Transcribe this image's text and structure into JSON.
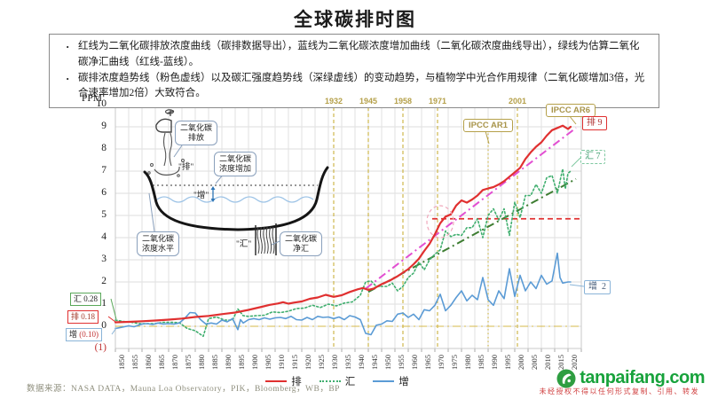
{
  "title": "全球碳排时图",
  "description_box": {
    "bullets": [
      "红线为二氧化碳排放浓度曲线（碳排数据导出），蓝线为二氧化碳浓度增加曲线（二氧化碳浓度曲线导出），绿线为估算二氧化碳净汇曲线（红线-蓝线）。",
      "碳排浓度趋势线（粉色虚线）以及碳汇强度趋势线（深绿虚线）的变动趋势，与植物学中光合作用规律（二氧化碳增加3倍，光合速率增加2倍）大致符合。"
    ]
  },
  "chart_data": {
    "type": "line",
    "ylabel": "PPM",
    "ylim": [
      -1,
      10
    ],
    "xlim": [
      1850,
      2025
    ],
    "grid": true,
    "y_ticks": [
      {
        "v": 10,
        "label": "10",
        "color": "#1a1a1a"
      },
      {
        "v": 9,
        "label": "9",
        "color": "#1a1a1a"
      },
      {
        "v": 8,
        "label": "8",
        "color": "#1a1a1a"
      },
      {
        "v": 7,
        "label": "7",
        "color": "#1a1a1a"
      },
      {
        "v": 6,
        "label": "6",
        "color": "#1a1a1a"
      },
      {
        "v": 5,
        "label": "5",
        "color": "#1a1a1a"
      },
      {
        "v": 4,
        "label": "4",
        "color": "#1a1a1a"
      },
      {
        "v": 3,
        "label": "3",
        "color": "#1a1a1a"
      },
      {
        "v": 2,
        "label": "2",
        "color": "#1a1a1a"
      },
      {
        "v": 1,
        "label": "1",
        "color": "#1a1a1a"
      },
      {
        "v": 0,
        "label": "0",
        "color": "#1a1a1a"
      },
      {
        "v": -1,
        "label": "(1)",
        "color": "#c03030"
      }
    ],
    "x_ticks": [
      1850,
      1855,
      1860,
      1865,
      1870,
      1875,
      1880,
      1885,
      1890,
      1895,
      1900,
      1905,
      1910,
      1915,
      1920,
      1925,
      1930,
      1935,
      1940,
      1945,
      1950,
      1955,
      1960,
      1965,
      1970,
      1975,
      1980,
      1985,
      1990,
      1995,
      2000,
      2005,
      2010,
      2015,
      2020
    ],
    "event_lines": [
      {
        "year": 1932,
        "label": "1932",
        "style": "dashfine"
      },
      {
        "year": 1945,
        "label": "1945",
        "style": "dashfine"
      },
      {
        "year": 1958,
        "label": "1958",
        "style": "dashfine"
      },
      {
        "year": 1971,
        "label": "1971",
        "style": "dashfine"
      },
      {
        "year": 1990,
        "label": "",
        "style": "dotfine"
      },
      {
        "year": 2001,
        "label": "2001",
        "style": "dashfine"
      }
    ],
    "series": [
      {
        "name": "汇",
        "color": "#3fae6e",
        "style": "dotted",
        "width": 1.6,
        "points": [
          [
            1850,
            0.28
          ],
          [
            1853,
            0.22
          ],
          [
            1856,
            0.18
          ],
          [
            1859,
            0.12
          ],
          [
            1862,
            0.12
          ],
          [
            1865,
            0.12
          ],
          [
            1868,
            0.18
          ],
          [
            1871,
            0.18
          ],
          [
            1874,
            0.16
          ],
          [
            1877,
            -0.1
          ],
          [
            1880,
            -0.2
          ],
          [
            1883,
            -0.45
          ],
          [
            1885,
            0.35
          ],
          [
            1888,
            0.42
          ],
          [
            1891,
            0.28
          ],
          [
            1894,
            0.28
          ],
          [
            1896,
            0.78
          ],
          [
            1898,
            0.48
          ],
          [
            1900,
            0.45
          ],
          [
            1903,
            0.48
          ],
          [
            1906,
            0.5
          ],
          [
            1909,
            0.65
          ],
          [
            1912,
            0.62
          ],
          [
            1915,
            0.68
          ],
          [
            1918,
            0.8
          ],
          [
            1921,
            0.82
          ],
          [
            1924,
            0.95
          ],
          [
            1927,
            0.85
          ],
          [
            1930,
            1.0
          ],
          [
            1933,
            0.92
          ],
          [
            1936,
            1.05
          ],
          [
            1939,
            1.1
          ],
          [
            1942,
            1.4
          ],
          [
            1944,
            2.0
          ],
          [
            1946,
            2.05
          ],
          [
            1948,
            1.8
          ],
          [
            1950,
            1.8
          ],
          [
            1952,
            1.8
          ],
          [
            1954,
            1.95
          ],
          [
            1956,
            1.6
          ],
          [
            1958,
            1.8
          ],
          [
            1960,
            2.2
          ],
          [
            1962,
            2.4
          ],
          [
            1964,
            2.9
          ],
          [
            1966,
            2.55
          ],
          [
            1968,
            3.0
          ],
          [
            1970,
            3.25
          ],
          [
            1972,
            3.45
          ],
          [
            1974,
            4.3
          ],
          [
            1976,
            4.05
          ],
          [
            1978,
            4.15
          ],
          [
            1980,
            4.1
          ],
          [
            1982,
            4.45
          ],
          [
            1984,
            4.45
          ],
          [
            1986,
            4.85
          ],
          [
            1988,
            4.0
          ],
          [
            1990,
            5.0
          ],
          [
            1992,
            5.3
          ],
          [
            1994,
            4.8
          ],
          [
            1996,
            5.3
          ],
          [
            1998,
            4.1
          ],
          [
            2000,
            5.6
          ],
          [
            2002,
            4.9
          ],
          [
            2004,
            5.9
          ],
          [
            2006,
            5.9
          ],
          [
            2008,
            6.4
          ],
          [
            2010,
            6.0
          ],
          [
            2012,
            6.7
          ],
          [
            2014,
            6.8
          ],
          [
            2016,
            6.0
          ],
          [
            2018,
            7.1
          ],
          [
            2019,
            6.2
          ],
          [
            2020,
            6.9
          ],
          [
            2021,
            7.0
          ]
        ]
      },
      {
        "name": "增",
        "color": "#5b9bd5",
        "style": "solid",
        "width": 1.6,
        "points": [
          [
            1850,
            -0.1
          ],
          [
            1852,
            -0.05
          ],
          [
            1855,
            0.02
          ],
          [
            1857,
            -0.02
          ],
          [
            1860,
            0.1
          ],
          [
            1862,
            0.12
          ],
          [
            1864,
            0.08
          ],
          [
            1866,
            0.15
          ],
          [
            1868,
            0.1
          ],
          [
            1870,
            0.12
          ],
          [
            1872,
            0.1
          ],
          [
            1874,
            0.15
          ],
          [
            1876,
            0.35
          ],
          [
            1878,
            0.62
          ],
          [
            1880,
            0.6
          ],
          [
            1882,
            0.3
          ],
          [
            1884,
            0.1
          ],
          [
            1886,
            0.15
          ],
          [
            1888,
            0.1
          ],
          [
            1890,
            0.28
          ],
          [
            1892,
            0.2
          ],
          [
            1894,
            0.35
          ],
          [
            1896,
            -0.15
          ],
          [
            1897,
            0.3
          ],
          [
            1898,
            0.15
          ],
          [
            1900,
            0.3
          ],
          [
            1902,
            0.35
          ],
          [
            1904,
            0.3
          ],
          [
            1906,
            0.38
          ],
          [
            1908,
            0.32
          ],
          [
            1910,
            0.38
          ],
          [
            1912,
            0.4
          ],
          [
            1914,
            0.35
          ],
          [
            1916,
            0.45
          ],
          [
            1918,
            0.3
          ],
          [
            1920,
            0.28
          ],
          [
            1922,
            0.4
          ],
          [
            1924,
            0.3
          ],
          [
            1926,
            0.45
          ],
          [
            1928,
            0.4
          ],
          [
            1930,
            0.42
          ],
          [
            1932,
            0.35
          ],
          [
            1934,
            0.42
          ],
          [
            1936,
            0.3
          ],
          [
            1938,
            0.48
          ],
          [
            1940,
            0.42
          ],
          [
            1942,
            0.3
          ],
          [
            1944,
            -0.32
          ],
          [
            1946,
            -0.38
          ],
          [
            1948,
            0.05
          ],
          [
            1950,
            0.1
          ],
          [
            1952,
            0.25
          ],
          [
            1954,
            0.22
          ],
          [
            1956,
            0.55
          ],
          [
            1958,
            0.6
          ],
          [
            1960,
            0.4
          ],
          [
            1962,
            0.55
          ],
          [
            1964,
            0.3
          ],
          [
            1966,
            0.75
          ],
          [
            1968,
            0.7
          ],
          [
            1970,
            0.95
          ],
          [
            1972,
            1.45
          ],
          [
            1974,
            0.7
          ],
          [
            1976,
            0.95
          ],
          [
            1978,
            1.3
          ],
          [
            1980,
            1.6
          ],
          [
            1982,
            1.15
          ],
          [
            1984,
            1.4
          ],
          [
            1986,
            1.2
          ],
          [
            1988,
            2.2
          ],
          [
            1990,
            1.2
          ],
          [
            1992,
            0.95
          ],
          [
            1994,
            1.6
          ],
          [
            1996,
            1.25
          ],
          [
            1998,
            2.6
          ],
          [
            2000,
            1.35
          ],
          [
            2002,
            2.3
          ],
          [
            2004,
            1.6
          ],
          [
            2006,
            2.0
          ],
          [
            2008,
            1.7
          ],
          [
            2010,
            2.3
          ],
          [
            2012,
            1.9
          ],
          [
            2014,
            2.05
          ],
          [
            2016,
            3.3
          ],
          [
            2017,
            2.2
          ],
          [
            2018,
            1.95
          ],
          [
            2020,
            2.0
          ],
          [
            2021,
            2.0
          ]
        ]
      },
      {
        "name": "排",
        "color": "#e03030",
        "style": "solid",
        "width": 2.2,
        "points": [
          [
            1850,
            0.18
          ],
          [
            1855,
            0.2
          ],
          [
            1860,
            0.23
          ],
          [
            1865,
            0.26
          ],
          [
            1870,
            0.3
          ],
          [
            1875,
            0.35
          ],
          [
            1880,
            0.42
          ],
          [
            1885,
            0.47
          ],
          [
            1890,
            0.55
          ],
          [
            1895,
            0.62
          ],
          [
            1900,
            0.74
          ],
          [
            1905,
            0.88
          ],
          [
            1908,
            0.97
          ],
          [
            1911,
            1.03
          ],
          [
            1913,
            1.09
          ],
          [
            1915,
            1.02
          ],
          [
            1917,
            1.07
          ],
          [
            1920,
            1.12
          ],
          [
            1923,
            1.24
          ],
          [
            1926,
            1.3
          ],
          [
            1929,
            1.42
          ],
          [
            1932,
            1.33
          ],
          [
            1935,
            1.4
          ],
          [
            1938,
            1.55
          ],
          [
            1941,
            1.67
          ],
          [
            1943,
            1.73
          ],
          [
            1945,
            1.64
          ],
          [
            1947,
            1.7
          ],
          [
            1950,
            1.9
          ],
          [
            1953,
            2.06
          ],
          [
            1956,
            2.26
          ],
          [
            1958,
            2.42
          ],
          [
            1960,
            2.58
          ],
          [
            1962,
            2.8
          ],
          [
            1964,
            3.05
          ],
          [
            1966,
            3.4
          ],
          [
            1968,
            3.72
          ],
          [
            1970,
            4.15
          ],
          [
            1972,
            4.65
          ],
          [
            1974,
            4.95
          ],
          [
            1976,
            5.05
          ],
          [
            1978,
            5.45
          ],
          [
            1980,
            5.68
          ],
          [
            1982,
            5.58
          ],
          [
            1984,
            5.72
          ],
          [
            1986,
            5.9
          ],
          [
            1988,
            6.15
          ],
          [
            1990,
            6.22
          ],
          [
            1992,
            6.28
          ],
          [
            1994,
            6.4
          ],
          [
            1996,
            6.55
          ],
          [
            1998,
            6.75
          ],
          [
            2000,
            6.95
          ],
          [
            2002,
            7.15
          ],
          [
            2004,
            7.55
          ],
          [
            2006,
            7.85
          ],
          [
            2008,
            8.1
          ],
          [
            2010,
            8.3
          ],
          [
            2012,
            8.6
          ],
          [
            2014,
            8.85
          ],
          [
            2016,
            8.95
          ],
          [
            2018,
            9.05
          ],
          [
            2020,
            8.9
          ],
          [
            2021,
            9.0
          ]
        ]
      }
    ],
    "trend_lines": [
      {
        "name": "碳排浓度趋势线",
        "color": "#e24fd2",
        "style": "dashdot",
        "width": 2,
        "points": [
          [
            1944,
            1.7
          ],
          [
            2023,
            8.95
          ]
        ]
      },
      {
        "name": "碳汇强度趋势线",
        "color": "#3e7d32",
        "style": "dashdot",
        "width": 2,
        "points": [
          [
            1945,
            1.55
          ],
          [
            2023,
            6.65
          ]
        ]
      }
    ],
    "reference_lines": [
      {
        "value": 4.85,
        "from": 1969,
        "to": 2025,
        "color": "#e03030",
        "style": "dashed",
        "width": 1.8
      },
      {
        "value": 0,
        "from": 1850,
        "to": 2025,
        "color": "#d6b84a",
        "style": "dashdot",
        "width": 1.1
      }
    ],
    "highlight_ellipse": {
      "year": 1972,
      "value": 4.72
    },
    "legend_position": "bottom"
  },
  "annotations": {
    "ipcc_ar1": "IPCC AR1",
    "ipcc_ar6": "IPCC AR6",
    "end_labels": {
      "pai": {
        "name": "排",
        "value": "9"
      },
      "hui": {
        "name": "汇",
        "value": "7"
      },
      "zeng": {
        "name": "增",
        "value": "2"
      }
    },
    "start_labels": {
      "hui": {
        "name": "汇",
        "value": "0.28"
      },
      "pai": {
        "name": "排",
        "value": "0.18"
      },
      "zeng": {
        "name": "增",
        "value": "(0.10)"
      }
    }
  },
  "illustration": {
    "bubble_emission": "二氧化碳排放",
    "bubble_increase": "二氧化碳浓度增加",
    "bubble_level": "二氧化碳浓度水平",
    "bubble_sink": "二氧化碳净汇",
    "quote_pai": "\"排\"",
    "quote_zeng": "\"增\"",
    "quote_hui": "\"汇\""
  },
  "legend": {
    "items": [
      {
        "label": "排",
        "color": "#e03030",
        "style": "solid"
      },
      {
        "label": "汇",
        "color": "#3fae6e",
        "style": "dotted"
      },
      {
        "label": "增",
        "color": "#5b9bd5",
        "style": "solid"
      }
    ]
  },
  "footer": {
    "source": "数据来源：NASA DATA，Mauna Loa Observatory，PIK，Bloomberg，WB，BP",
    "logo_text": "tanpaifang.com",
    "disclaimer": "未经授权不得以任何形式复制、引用、转发"
  },
  "colors": {
    "emission_red": "#e03030",
    "increase_blue": "#5b9bd5",
    "sink_green": "#3fae6e",
    "sink_trend_dark_green": "#3e7d32",
    "emission_trend_pink": "#e24fd2",
    "event_olive": "#c9b03c",
    "logo_green": "#17a23b"
  }
}
